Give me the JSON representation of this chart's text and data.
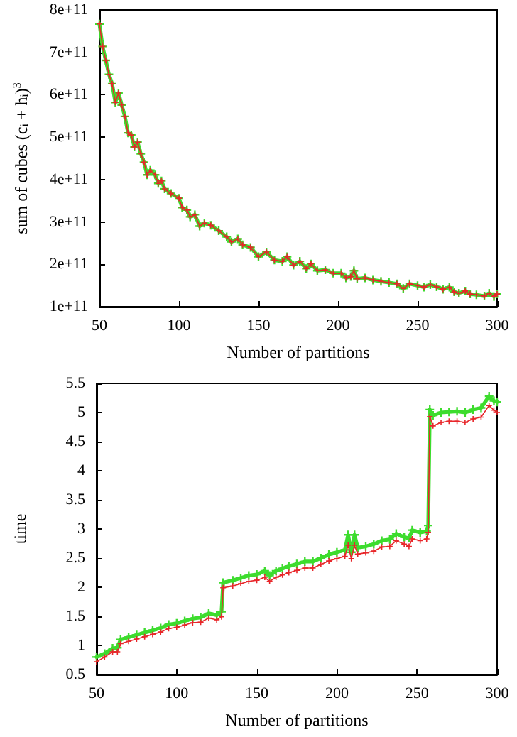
{
  "chart_data": [
    {
      "type": "line",
      "xlabel": "Number of partitions",
      "ylabel": "sum of cubes (c$_{i}$ + h$_{i}$)$^{3}$",
      "xlim": [
        50,
        300
      ],
      "xticks": [
        50,
        100,
        150,
        200,
        250,
        300
      ],
      "ylim": [
        100000000000.0,
        800000000000.0
      ],
      "yticks": [
        {
          "value": 100000000000.0,
          "label": "1e+11"
        },
        {
          "value": 200000000000.0,
          "label": "2e+11"
        },
        {
          "value": 300000000000.0,
          "label": "3e+11"
        },
        {
          "value": 400000000000.0,
          "label": "4e+11"
        },
        {
          "value": 500000000000.0,
          "label": "5e+11"
        },
        {
          "value": 600000000000.0,
          "label": "6e+11"
        },
        {
          "value": 700000000000.0,
          "label": "7e+11"
        },
        {
          "value": 800000000000.0,
          "label": "8e+11"
        }
      ],
      "grid": false,
      "marker": "cross",
      "x": [
        50,
        52,
        54,
        56,
        58,
        60,
        62,
        64,
        66,
        68,
        70,
        72,
        74,
        76,
        78,
        80,
        82,
        85,
        87,
        89,
        91,
        95,
        100,
        102,
        105,
        107,
        110,
        113,
        116,
        120,
        125,
        130,
        133,
        137,
        140,
        145,
        150,
        155,
        160,
        165,
        168,
        172,
        176,
        180,
        183,
        187,
        192,
        197,
        202,
        205,
        208,
        210,
        212,
        217,
        222,
        227,
        232,
        237,
        241,
        245,
        250,
        254,
        258,
        262,
        266,
        270,
        273,
        276,
        280,
        283,
        287,
        292,
        295,
        298,
        300
      ],
      "series": [
        {
          "color": "#e8262a",
          "values": [
            767000000000.0,
            714000000000.0,
            681000000000.0,
            648000000000.0,
            626000000000.0,
            582000000000.0,
            604000000000.0,
            576000000000.0,
            549000000000.0,
            510000000000.0,
            505000000000.0,
            477000000000.0,
            488000000000.0,
            461000000000.0,
            441000000000.0,
            411000000000.0,
            422000000000.0,
            411000000000.0,
            391000000000.0,
            397000000000.0,
            378000000000.0,
            367000000000.0,
            356000000000.0,
            334000000000.0,
            328000000000.0,
            312000000000.0,
            317000000000.0,
            290000000000.0,
            297000000000.0,
            292000000000.0,
            279000000000.0,
            265000000000.0,
            253000000000.0,
            260000000000.0,
            246000000000.0,
            240000000000.0,
            218000000000.0,
            229000000000.0,
            210000000000.0,
            207000000000.0,
            218000000000.0,
            198000000000.0,
            207000000000.0,
            190000000000.0,
            201000000000.0,
            185000000000.0,
            187000000000.0,
            179000000000.0,
            179000000000.0,
            168000000000.0,
            171000000000.0,
            185000000000.0,
            166000000000.0,
            168000000000.0,
            163000000000.0,
            160000000000.0,
            157000000000.0,
            154000000000.0,
            143000000000.0,
            154000000000.0,
            150000000000.0,
            146000000000.0,
            152000000000.0,
            147000000000.0,
            141000000000.0,
            146000000000.0,
            135000000000.0,
            132000000000.0,
            137000000000.0,
            130000000000.0,
            128000000000.0,
            125000000000.0,
            132000000000.0,
            124000000000.0,
            130000000000.0
          ]
        },
        {
          "color": "#3ddc2e",
          "values": [
            767000000000.0,
            714000000000.0,
            681000000000.0,
            648000000000.0,
            626000000000.0,
            582000000000.0,
            604000000000.0,
            576000000000.0,
            549000000000.0,
            510000000000.0,
            505000000000.0,
            477000000000.0,
            488000000000.0,
            461000000000.0,
            441000000000.0,
            411000000000.0,
            422000000000.0,
            411000000000.0,
            391000000000.0,
            397000000000.0,
            378000000000.0,
            367000000000.0,
            356000000000.0,
            334000000000.0,
            328000000000.0,
            312000000000.0,
            317000000000.0,
            290000000000.0,
            297000000000.0,
            292000000000.0,
            279000000000.0,
            265000000000.0,
            253000000000.0,
            260000000000.0,
            246000000000.0,
            240000000000.0,
            218000000000.0,
            229000000000.0,
            210000000000.0,
            207000000000.0,
            218000000000.0,
            198000000000.0,
            207000000000.0,
            190000000000.0,
            201000000000.0,
            185000000000.0,
            187000000000.0,
            179000000000.0,
            179000000000.0,
            168000000000.0,
            171000000000.0,
            185000000000.0,
            166000000000.0,
            168000000000.0,
            163000000000.0,
            160000000000.0,
            157000000000.0,
            154000000000.0,
            143000000000.0,
            154000000000.0,
            150000000000.0,
            146000000000.0,
            152000000000.0,
            147000000000.0,
            141000000000.0,
            146000000000.0,
            135000000000.0,
            132000000000.0,
            137000000000.0,
            130000000000.0,
            128000000000.0,
            125000000000.0,
            132000000000.0,
            124000000000.0,
            130000000000.0
          ]
        }
      ]
    },
    {
      "type": "line",
      "xlabel": "Number of partitions",
      "ylabel": "time",
      "xlim": [
        50,
        300
      ],
      "xticks": [
        50,
        100,
        150,
        200,
        250,
        300
      ],
      "ylim": [
        0.5,
        5.5
      ],
      "yticks": [
        0.5,
        1,
        1.5,
        2,
        2.5,
        3,
        3.5,
        4,
        4.5,
        5,
        5.5
      ],
      "grid": false,
      "marker": "cross",
      "x": [
        50,
        55,
        60,
        63,
        65,
        70,
        75,
        80,
        85,
        90,
        95,
        100,
        105,
        110,
        115,
        120,
        125,
        128,
        129,
        135,
        140,
        145,
        150,
        155,
        158,
        162,
        166,
        170,
        175,
        180,
        185,
        190,
        195,
        200,
        205,
        207,
        209,
        211,
        213,
        218,
        223,
        228,
        233,
        237,
        242,
        245,
        247,
        252,
        256,
        257,
        258,
        260,
        265,
        270,
        275,
        280,
        285,
        290,
        295,
        298,
        300
      ],
      "series": [
        {
          "color": "#e8262a",
          "values": [
            0.72,
            0.8,
            0.89,
            0.89,
            1.03,
            1.07,
            1.11,
            1.15,
            1.19,
            1.23,
            1.29,
            1.31,
            1.35,
            1.39,
            1.4,
            1.47,
            1.44,
            1.49,
            1.99,
            2.02,
            2.06,
            2.1,
            2.12,
            2.17,
            2.1,
            2.17,
            2.21,
            2.25,
            2.29,
            2.33,
            2.33,
            2.39,
            2.45,
            2.49,
            2.53,
            2.72,
            2.49,
            2.72,
            2.57,
            2.59,
            2.62,
            2.69,
            2.7,
            2.8,
            2.74,
            2.7,
            2.83,
            2.8,
            2.83,
            2.94,
            4.93,
            4.77,
            4.83,
            4.85,
            4.85,
            4.83,
            4.89,
            4.92,
            5.12,
            5.04,
            5.0
          ]
        },
        {
          "color": "#3ddc2e",
          "values": [
            0.8,
            0.86,
            0.95,
            0.96,
            1.1,
            1.14,
            1.18,
            1.22,
            1.26,
            1.3,
            1.36,
            1.38,
            1.42,
            1.46,
            1.48,
            1.55,
            1.52,
            1.58,
            2.08,
            2.12,
            2.16,
            2.2,
            2.22,
            2.28,
            2.2,
            2.28,
            2.32,
            2.36,
            2.4,
            2.44,
            2.44,
            2.5,
            2.56,
            2.6,
            2.64,
            2.9,
            2.6,
            2.9,
            2.68,
            2.7,
            2.74,
            2.8,
            2.82,
            2.92,
            2.86,
            2.84,
            2.98,
            2.94,
            2.96,
            3.06,
            5.05,
            4.95,
            5.0,
            5.01,
            5.02,
            5.0,
            5.05,
            5.08,
            5.28,
            5.2,
            5.18
          ]
        }
      ]
    }
  ]
}
